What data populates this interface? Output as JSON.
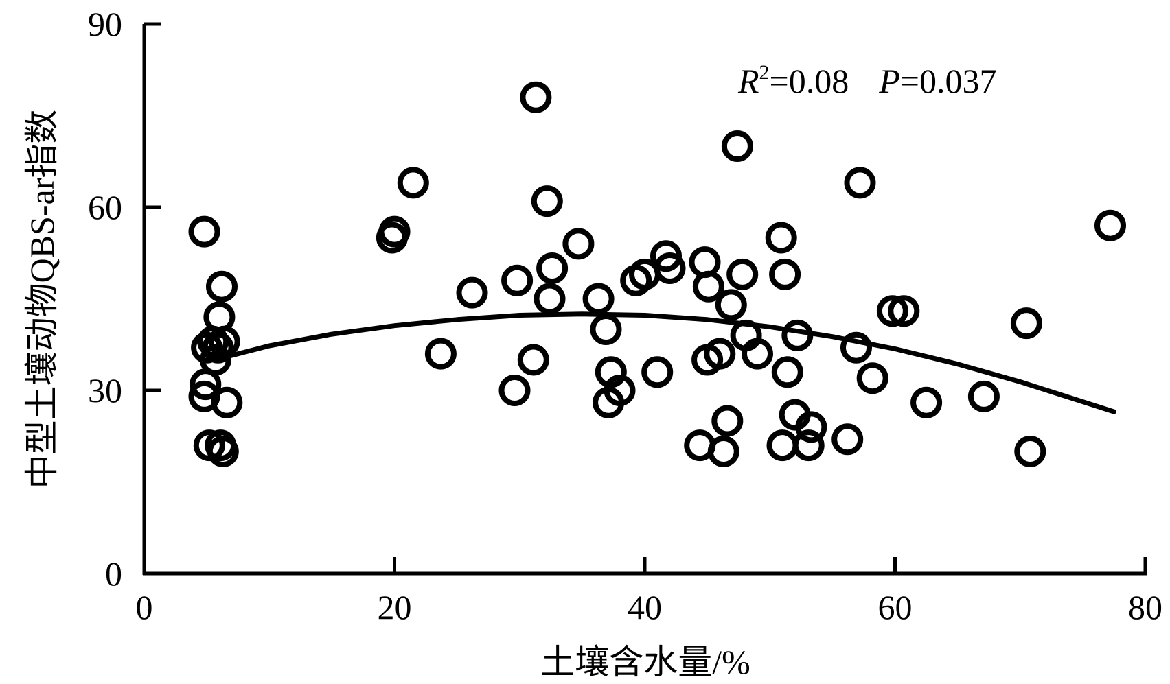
{
  "chart_data": {
    "type": "scatter",
    "title": "",
    "xlabel": "土壤含水量/%",
    "ylabel": "中型土壤动物QBS-ar指数",
    "xlim": [
      0,
      80
    ],
    "ylim": [
      0,
      90
    ],
    "xticks": [
      0,
      20,
      40,
      60,
      80
    ],
    "yticks": [
      0,
      30,
      60,
      90
    ],
    "grid": false,
    "annotation": {
      "r2_symbol": "R",
      "r2_sup": "2",
      "r2_value": "=0.08",
      "p_symbol": "P",
      "p_value": "=0.037"
    },
    "series": [
      {
        "marker": "open-circle",
        "x": [
          4.8,
          5.0,
          4.8,
          5.2,
          4.9,
          5.5,
          5.7,
          6.0,
          6.2,
          6.4,
          6.6,
          6.3,
          5.9,
          6.1,
          19.8,
          20.0,
          21.5,
          23.7,
          26.2,
          29.8,
          29.6,
          31.3,
          31.1,
          32.2,
          32.6,
          32.4,
          34.7,
          36.3,
          36.9,
          37.3,
          37.1,
          38.0,
          39.3,
          40.0,
          41.0,
          41.7,
          42.0,
          44.4,
          44.8,
          45.1,
          45.0,
          46.0,
          46.3,
          46.6,
          46.9,
          47.4,
          47.8,
          48.1,
          49.0,
          50.9,
          51.0,
          51.2,
          51.4,
          52.0,
          52.2,
          53.1,
          53.3,
          56.2,
          56.9,
          57.2,
          58.2,
          59.8,
          60.7,
          62.5,
          67.1,
          70.5,
          70.8,
          77.2
        ],
        "y": [
          56,
          37,
          29,
          21,
          31,
          38,
          35,
          42,
          47,
          38,
          28,
          20,
          37,
          21,
          55,
          56,
          64,
          36,
          46,
          48,
          30,
          78,
          35,
          61,
          50,
          45,
          54,
          45,
          40,
          33,
          28,
          30,
          48,
          49,
          33,
          52,
          50,
          21,
          51,
          47,
          35,
          36,
          20,
          25,
          44,
          70,
          49,
          39,
          36,
          55,
          21,
          49,
          33,
          26,
          39,
          21,
          24,
          22,
          37,
          64,
          32,
          43,
          43,
          28,
          29,
          41,
          20,
          57
        ]
      }
    ],
    "fit": {
      "type": "quadratic",
      "x": [
        6,
        10,
        15,
        20,
        25,
        30,
        35,
        40,
        45,
        50,
        55,
        60,
        65,
        70,
        77.5
      ],
      "y": [
        35.2,
        37.3,
        39.2,
        40.6,
        41.6,
        42.3,
        42.5,
        42.3,
        41.6,
        40.4,
        38.8,
        36.8,
        34.3,
        31.4,
        26.5
      ]
    }
  }
}
